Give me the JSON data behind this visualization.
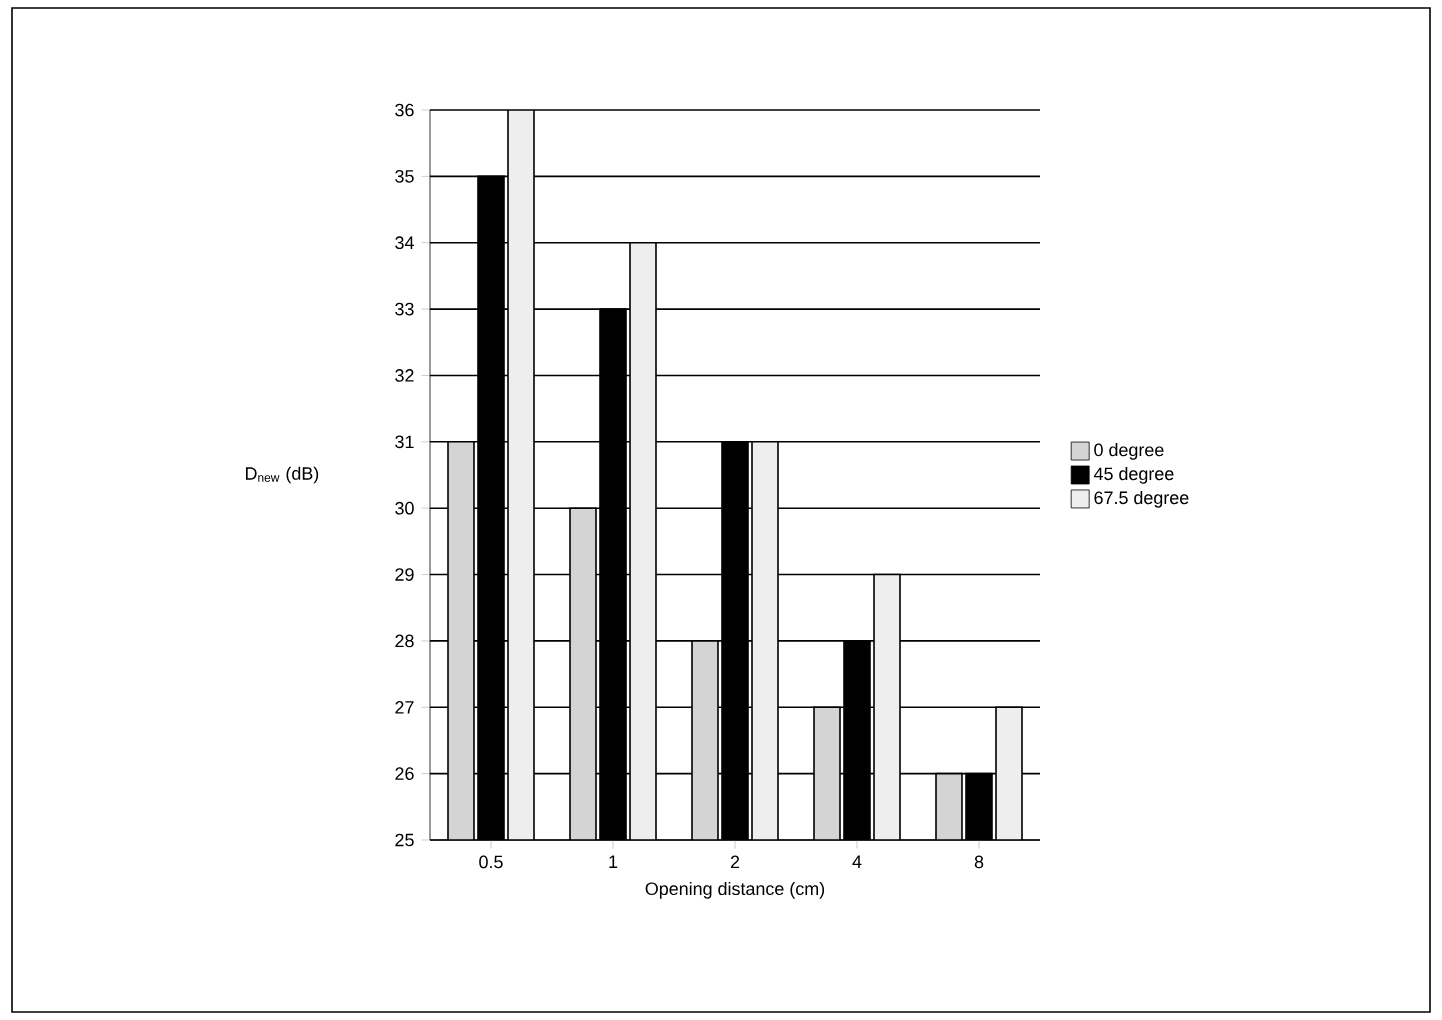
{
  "chart_data": {
    "type": "bar",
    "xlabel": "Opening distance (cm)",
    "ylabel": "D$_{new}$ (dB)",
    "categories": [
      "0.5",
      "1",
      "2",
      "4",
      "8"
    ],
    "series": [
      {
        "name": "0 degree",
        "color": "#d4d4d4",
        "values": [
          31,
          30,
          28,
          27,
          26
        ]
      },
      {
        "name": "45 degree",
        "color": "#000000",
        "values": [
          35,
          33,
          31,
          28,
          26
        ]
      },
      {
        "name": "67.5 degree",
        "color": "#eeeeee",
        "values": [
          36,
          34,
          31,
          29,
          27
        ]
      }
    ],
    "ylim": [
      25,
      36
    ],
    "yticks": [
      25,
      26,
      27,
      28,
      29,
      30,
      31,
      32,
      33,
      34,
      35,
      36
    ],
    "grid": "y",
    "legend": "right"
  }
}
